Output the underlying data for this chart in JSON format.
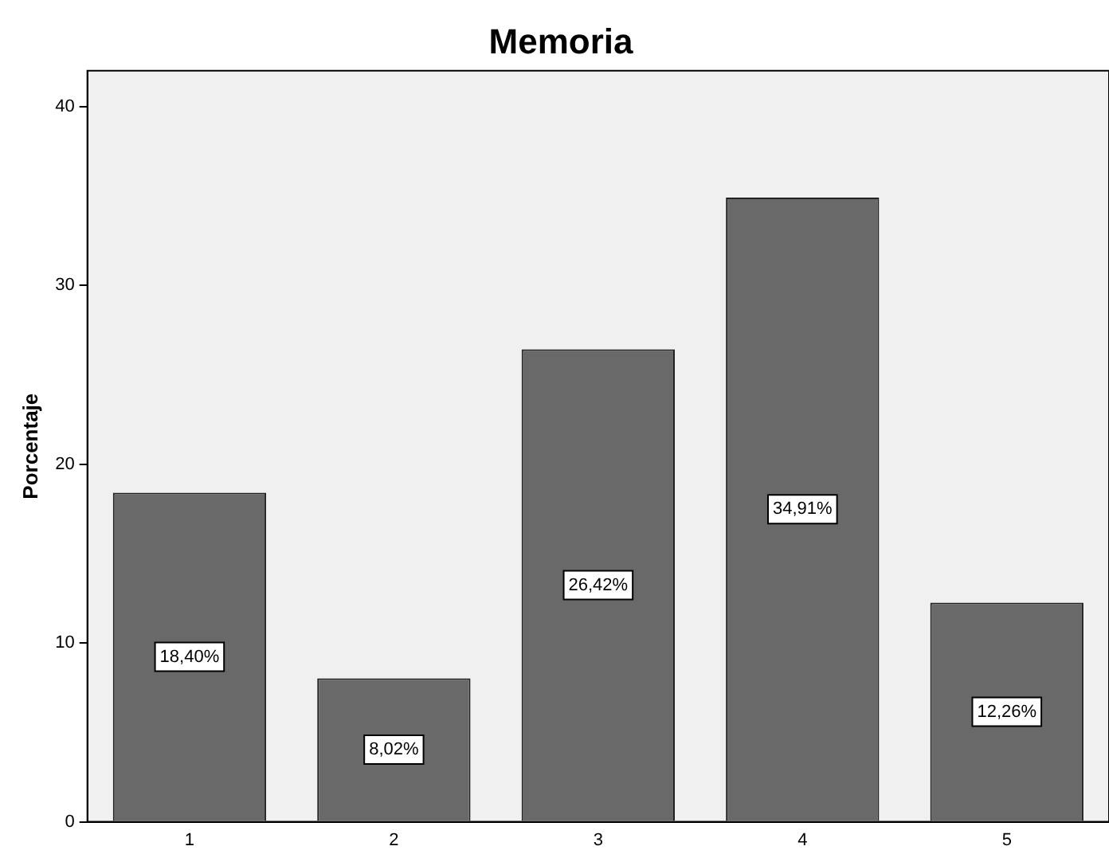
{
  "chart_data": {
    "type": "bar",
    "title": "Memoria",
    "ylabel": "Porcentaje",
    "categories": [
      "1",
      "2",
      "3",
      "4",
      "5"
    ],
    "values": [
      18.4,
      8.02,
      26.42,
      34.91,
      12.26
    ],
    "value_labels": [
      "18,40%",
      "8,02%",
      "26,42%",
      "34,91%",
      "12,26%"
    ],
    "color": "#696969",
    "ylim": [
      0,
      42
    ],
    "yticks": [
      0,
      10,
      20,
      30,
      40
    ],
    "grid": false,
    "legend": false
  }
}
